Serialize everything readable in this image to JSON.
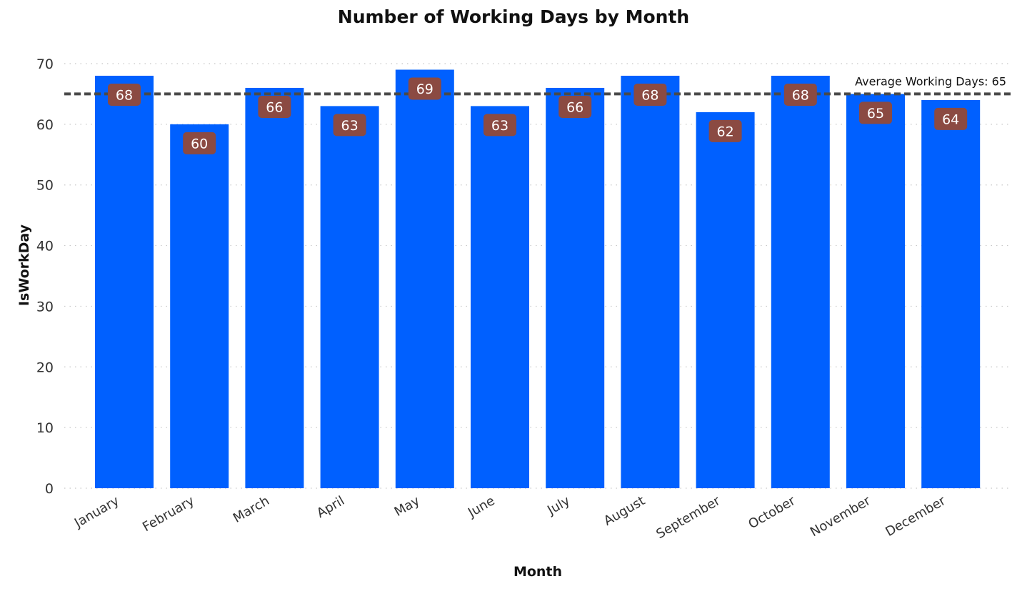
{
  "colors": {
    "bar": "#0060FF",
    "data_label_bg": "#8B4A42",
    "data_label_text": "#FFFFFF",
    "avg_line": "#4A4A4A"
  },
  "chart_data": {
    "type": "bar",
    "title": "Number of Working Days by Month",
    "xlabel": "Month",
    "ylabel": "IsWorkDay",
    "categories": [
      "January",
      "February",
      "March",
      "April",
      "May",
      "June",
      "July",
      "August",
      "September",
      "October",
      "November",
      "December"
    ],
    "values": [
      68,
      60,
      66,
      63,
      69,
      63,
      66,
      68,
      62,
      68,
      65,
      64
    ],
    "ylim": [
      0,
      70
    ],
    "yticks": [
      0,
      10,
      20,
      30,
      40,
      50,
      60,
      70
    ],
    "grid": true,
    "data_labels": true,
    "reference_line": {
      "value": 65,
      "label": "Average Working Days: 65"
    }
  }
}
